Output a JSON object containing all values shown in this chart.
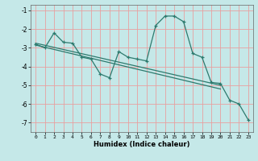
{
  "title": "",
  "xlabel": "Humidex (Indice chaleur)",
  "bg_color": "#c5e8e8",
  "grid_color": "#e8a0a0",
  "line_color": "#2d7a6e",
  "xlim": [
    -0.5,
    23.5
  ],
  "ylim": [
    -7.5,
    -0.7
  ],
  "xticks": [
    0,
    1,
    2,
    3,
    4,
    5,
    6,
    7,
    8,
    9,
    10,
    11,
    12,
    13,
    14,
    15,
    16,
    17,
    18,
    19,
    20,
    21,
    22,
    23
  ],
  "yticks": [
    -1,
    -2,
    -3,
    -4,
    -5,
    -6,
    -7
  ],
  "series1_x": [
    0,
    1,
    2,
    3,
    4,
    5,
    6,
    7,
    8,
    9,
    10,
    11,
    12,
    13,
    14,
    15,
    16,
    17,
    18,
    19,
    20,
    21,
    22,
    23
  ],
  "series1_y": [
    -2.8,
    -3.0,
    -2.2,
    -2.7,
    -2.75,
    -3.5,
    -3.6,
    -4.4,
    -4.6,
    -3.2,
    -3.5,
    -3.6,
    -3.7,
    -1.8,
    -1.3,
    -1.3,
    -1.6,
    -3.3,
    -3.5,
    -4.85,
    -4.9,
    -5.8,
    -6.0,
    -6.85
  ],
  "series2_x": [
    0,
    20
  ],
  "series2_y": [
    -2.75,
    -5.0
  ],
  "series3_x": [
    0,
    20
  ],
  "series3_y": [
    -2.85,
    -5.2
  ]
}
